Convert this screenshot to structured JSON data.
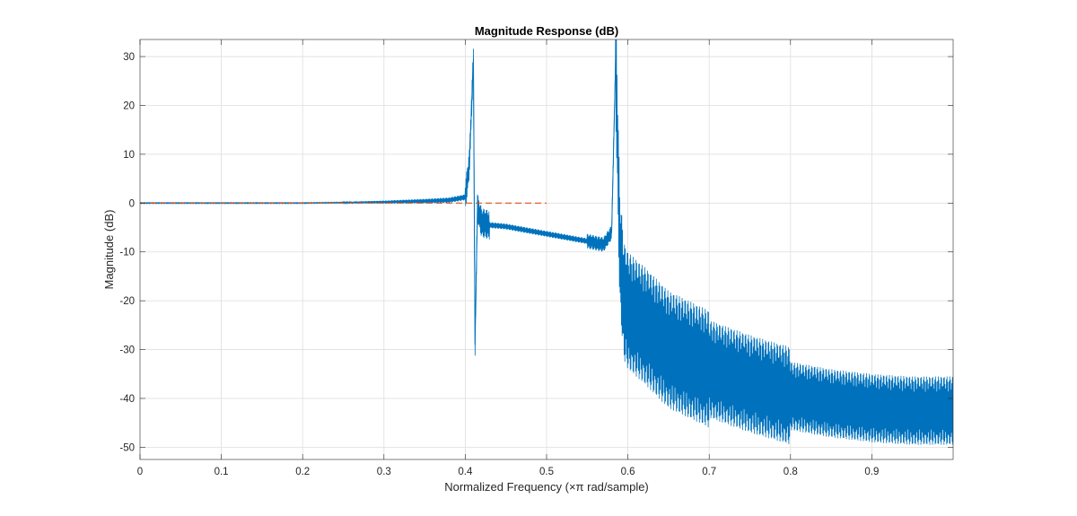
{
  "chart_data": {
    "type": "line",
    "title": "Magnitude Response (dB)",
    "xlabel": "Normalized Frequency (×π rad/sample)",
    "ylabel": "Magnitude (dB)",
    "xlim": [
      0,
      1
    ],
    "ylim": [
      -52.5,
      33.5
    ],
    "xticks": [
      0,
      0.1,
      0.2,
      0.3,
      0.4,
      0.5,
      0.6,
      0.7,
      0.8,
      0.9
    ],
    "xtick_labels": [
      "0",
      "0.1",
      "0.2",
      "0.3",
      "0.4",
      "0.5",
      "0.6",
      "0.7",
      "0.8",
      "0.9"
    ],
    "yticks": [
      30,
      20,
      10,
      0,
      -10,
      -20,
      -30,
      -40,
      -50
    ],
    "ytick_labels": [
      "30",
      "20",
      "10",
      "0",
      "-10",
      "-20",
      "-30",
      "-40",
      "-50"
    ],
    "grid": true,
    "colors": {
      "series1": "#0072bd",
      "series2": "#d95319",
      "grid": "#dedede",
      "axis": "#262626"
    },
    "series": [
      {
        "key": "filter",
        "style": "solid",
        "x": [
          0,
          0.1,
          0.2,
          0.3,
          0.35,
          0.38,
          0.4,
          0.405,
          0.41,
          0.412,
          0.415,
          0.42,
          0.43,
          0.45,
          0.5,
          0.55,
          0.57,
          0.58,
          0.585,
          0.59,
          0.595,
          0.6,
          0.62,
          0.65,
          0.7,
          0.75,
          0.8,
          0.85,
          0.9,
          0.95,
          1.0
        ],
        "y": [
          0,
          0,
          0,
          0.2,
          0.4,
          0.6,
          1.2,
          8,
          29.5,
          -29,
          -1,
          -4,
          -4.5,
          -4.8,
          -6.3,
          -7.8,
          -8.5,
          -6,
          29.8,
          -9,
          -20,
          -22,
          -25,
          -30,
          -34,
          -37,
          -39.5,
          -41,
          -42,
          -42.5,
          -42.5
        ]
      },
      {
        "key": "reference",
        "style": "dashed",
        "x": [
          0,
          0.5
        ],
        "y": [
          0,
          0
        ]
      }
    ]
  }
}
